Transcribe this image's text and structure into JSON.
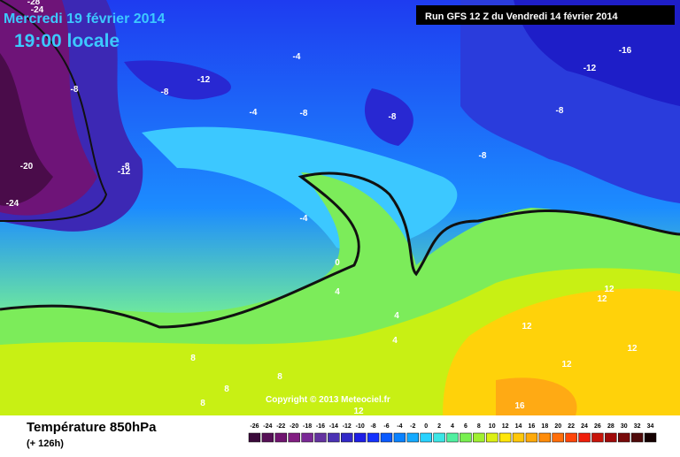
{
  "header": {
    "date": "Mercredi 19 février 2014",
    "time": "19:00 locale",
    "run": "Run GFS 12 Z du Vendredi 14 février 2014"
  },
  "footer": {
    "title": "Température 850hPa",
    "lead": "(+ 126h)",
    "copyright": "Copyright © 2013 Meteociel.fr"
  },
  "scale": {
    "labels": [
      -26,
      -24,
      -22,
      -20,
      -18,
      -16,
      -14,
      -12,
      -10,
      -8,
      -6,
      -4,
      -2,
      0,
      2,
      4,
      6,
      8,
      10,
      12,
      14,
      16,
      18,
      20,
      22,
      24,
      26,
      28,
      30,
      32,
      34
    ],
    "colors": [
      "#3a0a3a",
      "#560f56",
      "#701470",
      "#821e82",
      "#7a2896",
      "#6432a0",
      "#4b32b4",
      "#3228c8",
      "#1e1ee6",
      "#1432ff",
      "#0a5aff",
      "#0a82ff",
      "#14aaff",
      "#28d2ff",
      "#3ce6e6",
      "#50f0a0",
      "#78f050",
      "#a0f032",
      "#dcf014",
      "#ffe60a",
      "#ffc80a",
      "#ffaa0a",
      "#ff8c0a",
      "#ff6e0a",
      "#ff460a",
      "#f01e0a",
      "#c8140a",
      "#a00a0a",
      "#780a0a",
      "#500a0a",
      "#140000"
    ]
  },
  "contour_labels": [
    "-28",
    "-24",
    "-24",
    "-20",
    "-8",
    "-8",
    "-12",
    "-4",
    "-4",
    "-8",
    "-8",
    "-8",
    "-8",
    "-12",
    "-16",
    "-8",
    "-12",
    "-4",
    "0",
    "4",
    "4",
    "4",
    "8",
    "8",
    "8",
    "8",
    "12",
    "12",
    "12",
    "12",
    "12",
    "12",
    "16"
  ]
}
